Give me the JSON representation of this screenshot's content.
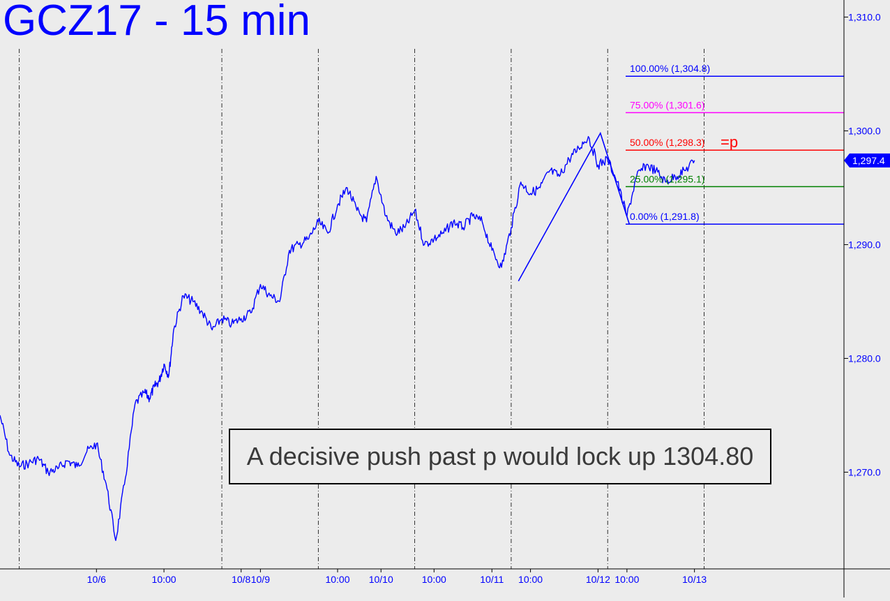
{
  "chart_data": {
    "type": "line",
    "title": "GCZ17 - 15 min",
    "annotation": "A decisive push past p would lock up 1304.80",
    "ylim": [
      1261.5,
      1311.5
    ],
    "y_ticks": [
      "1,310.0",
      "1,300.0",
      "1,290.0",
      "1,280.0",
      "1,270.0"
    ],
    "y_tick_values": [
      1310,
      1300,
      1290,
      1280,
      1270
    ],
    "x_tick_labels": [
      "10/6",
      "10:00",
      "10/8",
      "10/9",
      "10:00",
      "10/10",
      "10:00",
      "10/11",
      "10:00",
      "10/12",
      "10:00",
      "10/13"
    ],
    "x_tick_positions": [
      2.0,
      3.4,
      5.0,
      5.4,
      7.0,
      7.9,
      9.0,
      10.2,
      11.0,
      12.4,
      13.0,
      14.4
    ],
    "session_separators": [
      0.4,
      4.6,
      6.6,
      8.6,
      10.6,
      12.6,
      14.6
    ],
    "last_price": "1,297.4",
    "last_price_value": 1297.4,
    "series": [
      {
        "color": "#0000ff",
        "x": [
          0.0,
          0.2,
          0.4,
          0.6,
          0.8,
          1.0,
          1.2,
          1.4,
          1.6,
          1.8,
          2.0,
          2.2,
          2.4,
          2.6,
          2.8,
          3.0,
          3.1,
          3.2,
          3.3,
          3.4,
          3.5,
          3.6,
          3.8,
          4.0,
          4.2,
          4.4,
          4.6,
          4.8,
          5.0,
          5.2,
          5.4,
          5.6,
          5.8,
          6.0,
          6.2,
          6.4,
          6.6,
          6.8,
          7.0,
          7.2,
          7.4,
          7.6,
          7.8,
          8.0,
          8.2,
          8.4,
          8.6,
          8.8,
          9.0,
          9.2,
          9.4,
          9.6,
          9.8,
          10.0,
          10.2,
          10.4,
          10.6,
          10.8,
          11.0,
          11.2,
          11.4,
          11.6,
          11.8,
          12.0,
          12.2,
          12.4,
          12.6,
          12.8,
          13.0,
          13.2,
          13.4,
          13.6,
          13.8,
          14.0,
          14.2,
          14.4
        ],
        "values": [
          1275.0,
          1271.5,
          1270.5,
          1270.8,
          1271.2,
          1270.0,
          1270.3,
          1271.0,
          1270.5,
          1271.8,
          1272.5,
          1269.0,
          1264.0,
          1269.5,
          1276.0,
          1277.0,
          1276.5,
          1277.5,
          1278.0,
          1279.5,
          1278.5,
          1282.5,
          1285.5,
          1285.0,
          1284.0,
          1282.5,
          1283.5,
          1283.0,
          1283.5,
          1284.0,
          1286.5,
          1285.5,
          1285.0,
          1289.5,
          1290.0,
          1290.5,
          1292.0,
          1291.0,
          1293.5,
          1295.0,
          1293.0,
          1292.0,
          1296.0,
          1292.5,
          1291.0,
          1291.5,
          1293.0,
          1290.0,
          1290.5,
          1291.0,
          1292.0,
          1291.5,
          1292.5,
          1292.0,
          1289.5,
          1288.0,
          1291.5,
          1295.5,
          1294.5,
          1295.0,
          1296.5,
          1296.0,
          1297.5,
          1298.5,
          1299.5,
          1297.0,
          1297.5,
          1295.5,
          1292.5,
          1296.0,
          1297.0,
          1296.5,
          1295.5,
          1296.0,
          1296.5,
          1297.4
        ]
      }
    ],
    "swing_line": {
      "x": [
        10.75,
        12.45,
        13.05
      ],
      "values": [
        1286.8,
        1299.8,
        1291.8
      ]
    },
    "fib_levels": [
      {
        "label": "100.00% (1,304.8)",
        "value": 1304.8,
        "color": "#0000ff"
      },
      {
        "label": "75.00% (1,301.6)",
        "value": 1301.6,
        "color": "#ff00ff"
      },
      {
        "label": "50.00% (1,298.3)",
        "value": 1298.3,
        "color": "#ff0000",
        "suffix": "=p"
      },
      {
        "label": "25.00% (1,295.1)",
        "value": 1295.1,
        "color": "#008000"
      },
      {
        "label": "0.00% (1,291.8)",
        "value": 1291.8,
        "color": "#0000ff"
      }
    ],
    "x_range": [
      0,
      17.5
    ],
    "grid": false
  }
}
